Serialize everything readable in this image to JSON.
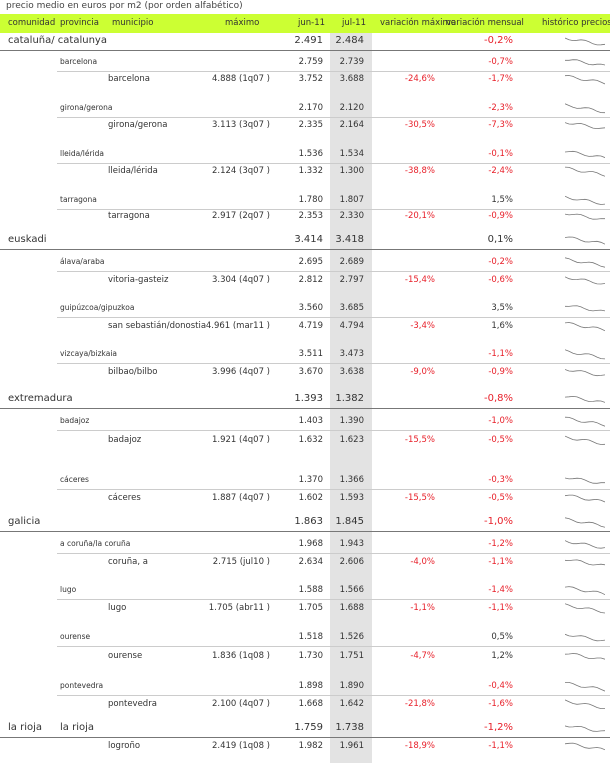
{
  "caption": "precio medio en euros por m2 (por orden alfabético)",
  "header": {
    "comunidad": "comunidad",
    "provincia": "provincia",
    "municipio": "municipio",
    "maximo": "máximo",
    "jun": "jun-11",
    "jul": "jul-11",
    "var_max": "variación máximo",
    "var_mens": "variación mensual",
    "historico": "histórico precios"
  },
  "colors": {
    "header_bg": "#ccff33",
    "negative": "#e8202a",
    "shaded_column": "#e3e3e3"
  },
  "rows": [
    {
      "level": "comunidad",
      "comunidad": "cataluña/ catalunya",
      "jun": "2.491",
      "jul": "2.484",
      "var_mens": "-0,2%"
    },
    {
      "level": "provincia",
      "provincia": "barcelona",
      "jun": "2.759",
      "jul": "2.739",
      "var_mens": "-0,7%"
    },
    {
      "level": "municipio",
      "municipio": "barcelona",
      "maximo": "4.888 (1q07 )",
      "jun": "3.752",
      "jul": "3.688",
      "var_max": "-24,6%",
      "var_mens": "-1,7%"
    },
    {
      "level": "provincia",
      "provincia": "girona/gerona",
      "jun": "2.170",
      "jul": "2.120",
      "var_mens": "-2,3%"
    },
    {
      "level": "municipio",
      "municipio": "girona/gerona",
      "maximo": "3.113 (3q07 )",
      "jun": "2.335",
      "jul": "2.164",
      "var_max": "-30,5%",
      "var_mens": "-7,3%"
    },
    {
      "level": "provincia",
      "provincia": "lleida/lérida",
      "jun": "1.536",
      "jul": "1.534",
      "var_mens": "-0,1%"
    },
    {
      "level": "municipio",
      "municipio": "lleida/lérida",
      "maximo": "2.124 (3q07 )",
      "jun": "1.332",
      "jul": "1.300",
      "var_max": "-38,8%",
      "var_mens": "-2,4%"
    },
    {
      "level": "provincia",
      "provincia": "tarragona",
      "jun": "1.780",
      "jul": "1.807",
      "var_mens": "1,5%"
    },
    {
      "level": "municipio",
      "municipio": "tarragona",
      "maximo": "2.917 (2q07 )",
      "jun": "2.353",
      "jul": "2.330",
      "var_max": "-20,1%",
      "var_mens": "-0,9%"
    },
    {
      "level": "comunidad",
      "comunidad": "euskadi",
      "jun": "3.414",
      "jul": "3.418",
      "var_mens": "0,1%"
    },
    {
      "level": "provincia",
      "provincia": "álava/araba",
      "jun": "2.695",
      "jul": "2.689",
      "var_mens": "-0,2%"
    },
    {
      "level": "municipio",
      "municipio": "vitoria-gasteiz",
      "maximo": "3.304 (4q07 )",
      "jun": "2.812",
      "jul": "2.797",
      "var_max": "-15,4%",
      "var_mens": "-0,6%"
    },
    {
      "level": "provincia",
      "provincia": "guipúzcoa/gipuzkoa",
      "jun": "3.560",
      "jul": "3.685",
      "var_mens": "3,5%"
    },
    {
      "level": "municipio",
      "municipio": "san sebastián/donostia",
      "maximo": "4.961 (mar11 )",
      "jun": "4.719",
      "jul": "4.794",
      "var_max": "-3,4%",
      "var_mens": "1,6%"
    },
    {
      "level": "provincia",
      "provincia": "vizcaya/bizkaia",
      "jun": "3.511",
      "jul": "3.473",
      "var_mens": "-1,1%"
    },
    {
      "level": "municipio",
      "municipio": "bilbao/bilbo",
      "maximo": "3.996 (4q07 )",
      "jun": "3.670",
      "jul": "3.638",
      "var_max": "-9,0%",
      "var_mens": "-0,9%"
    },
    {
      "level": "comunidad",
      "comunidad": "extremadura",
      "jun": "1.393",
      "jul": "1.382",
      "var_mens": "-0,8%"
    },
    {
      "level": "provincia",
      "provincia": "badajoz",
      "jun": "1.403",
      "jul": "1.390",
      "var_mens": "-1,0%"
    },
    {
      "level": "municipio",
      "municipio": "badajoz",
      "maximo": "1.921 (4q07 )",
      "jun": "1.632",
      "jul": "1.623",
      "var_max": "-15,5%",
      "var_mens": "-0,5%"
    },
    {
      "level": "provincia",
      "provincia": "cáceres",
      "jun": "1.370",
      "jul": "1.366",
      "var_mens": "-0,3%"
    },
    {
      "level": "municipio",
      "municipio": "cáceres",
      "maximo": "1.887 (4q07 )",
      "jun": "1.602",
      "jul": "1.593",
      "var_max": "-15,5%",
      "var_mens": "-0,5%"
    },
    {
      "level": "comunidad",
      "comunidad": "galicia",
      "jun": "1.863",
      "jul": "1.845",
      "var_mens": "-1,0%"
    },
    {
      "level": "provincia",
      "provincia": "a coruña/la coruña",
      "jun": "1.968",
      "jul": "1.943",
      "var_mens": "-1,2%"
    },
    {
      "level": "municipio",
      "municipio": "coruña, a",
      "maximo": "2.715 (jul10 )",
      "jun": "2.634",
      "jul": "2.606",
      "var_max": "-4,0%",
      "var_mens": "-1,1%"
    },
    {
      "level": "provincia",
      "provincia": "lugo",
      "jun": "1.588",
      "jul": "1.566",
      "var_mens": "-1,4%"
    },
    {
      "level": "municipio",
      "municipio": "lugo",
      "maximo": "1.705 (abr11 )",
      "jun": "1.705",
      "jul": "1.688",
      "var_max": "-1,1%",
      "var_mens": "-1,1%"
    },
    {
      "level": "provincia",
      "provincia": "ourense",
      "jun": "1.518",
      "jul": "1.526",
      "var_mens": "0,5%"
    },
    {
      "level": "municipio",
      "municipio": "ourense",
      "maximo": "1.836 (1q08 )",
      "jun": "1.730",
      "jul": "1.751",
      "var_max": "-4,7%",
      "var_mens": "1,2%"
    },
    {
      "level": "provincia",
      "provincia": "pontevedra",
      "jun": "1.898",
      "jul": "1.890",
      "var_mens": "-0,4%"
    },
    {
      "level": "municipio",
      "municipio": "pontevedra",
      "maximo": "2.100 (4q07 )",
      "jun": "1.668",
      "jul": "1.642",
      "var_max": "-21,8%",
      "var_mens": "-1,6%"
    },
    {
      "level": "comunidad",
      "comunidad": "la rioja",
      "provincia": "la rioja",
      "jun": "1.759",
      "jul": "1.738",
      "var_mens": "-1,2%"
    },
    {
      "level": "municipio",
      "municipio": "logroño",
      "maximo": "2.419 (1q08 )",
      "jun": "1.982",
      "jul": "1.961",
      "var_max": "-18,9%",
      "var_mens": "-1,1%"
    }
  ]
}
